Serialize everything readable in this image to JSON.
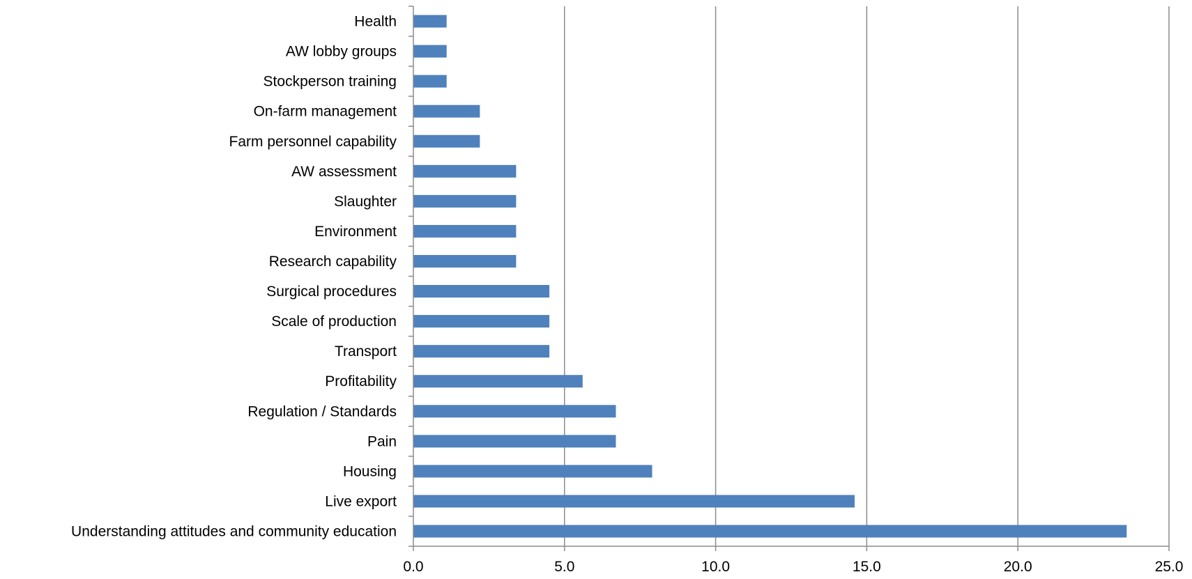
{
  "chart_data": {
    "type": "bar",
    "orientation": "horizontal",
    "title": "",
    "xlabel": "",
    "ylabel": "",
    "xlim": [
      0,
      25
    ],
    "x_ticks": [
      "0.0",
      "5.0",
      "10.0",
      "15.0",
      "20.0",
      "25.0"
    ],
    "grid": "vertical",
    "legend": "none",
    "bar_color": "#4f81bd",
    "categories": [
      "Health",
      "AW lobby groups",
      "Stockperson training",
      "On-farm management",
      "Farm personnel capability",
      "AW assessment",
      "Slaughter",
      "Environment",
      "Research capability",
      "Surgical procedures",
      "Scale of production",
      "Transport",
      "Profitability",
      "Regulation / Standards",
      "Pain",
      "Housing",
      "Live export",
      "Understanding attitudes and community education"
    ],
    "values": [
      1.1,
      1.1,
      1.1,
      2.2,
      2.2,
      3.4,
      3.4,
      3.4,
      3.4,
      4.5,
      4.5,
      4.5,
      5.6,
      6.7,
      6.7,
      7.9,
      14.6,
      23.6
    ]
  }
}
